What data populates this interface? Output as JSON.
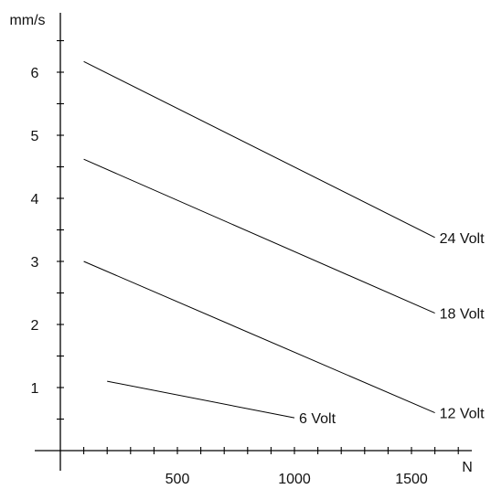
{
  "chart_data": {
    "type": "line",
    "x_unit_label": "N",
    "y_unit_label": "mm/s",
    "xlim": [
      0,
      1750
    ],
    "ylim": [
      0,
      7
    ],
    "x_ticks": [
      500,
      1000,
      1500
    ],
    "x_tick_labels": [
      "500",
      "1000",
      "1500"
    ],
    "x_minor_step": 100,
    "y_ticks": [
      1,
      2,
      3,
      4,
      5,
      6
    ],
    "y_tick_labels": [
      "1",
      "2",
      "3",
      "4",
      "5",
      "6"
    ],
    "y_minor_step": 0.5,
    "grid": false,
    "series": [
      {
        "name": "24 Volt",
        "x": [
          100,
          1600
        ],
        "y": [
          6.17,
          3.38
        ]
      },
      {
        "name": "18 Volt",
        "x": [
          100,
          1600
        ],
        "y": [
          4.62,
          2.18
        ]
      },
      {
        "name": "12 Volt",
        "x": [
          100,
          1600
        ],
        "y": [
          3.0,
          0.6
        ]
      },
      {
        "name": "6 Volt",
        "x": [
          200,
          1000
        ],
        "y": [
          1.1,
          0.52
        ]
      }
    ]
  }
}
